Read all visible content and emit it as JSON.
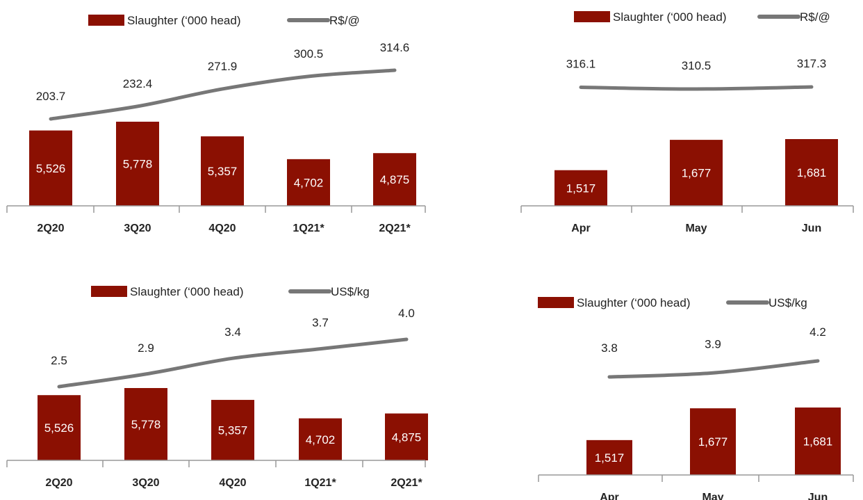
{
  "colors": {
    "bar": "#8B1002",
    "line": "#777777",
    "axis": "#999999"
  },
  "chart_data": [
    {
      "type": "bar",
      "categories": [
        "2Q20",
        "3Q20",
        "4Q20",
        "1Q21*",
        "2Q21*"
      ],
      "series": [
        {
          "name": "Slaughter (‘000 head)",
          "type": "bar",
          "values": [
            "5,526",
            "5,778",
            "5,357",
            "4,702",
            "4,875"
          ]
        },
        {
          "name": "R$/@",
          "type": "line",
          "values": [
            "203.7",
            "232.4",
            "271.9",
            "300.5",
            "314.6"
          ]
        }
      ],
      "legend": "top"
    },
    {
      "type": "bar",
      "categories": [
        "Apr",
        "May",
        "Jun"
      ],
      "series": [
        {
          "name": "Slaughter (‘000 head)",
          "type": "bar",
          "values": [
            "1,517",
            "1,677",
            "1,681"
          ]
        },
        {
          "name": "R$/@",
          "type": "line",
          "values": [
            "316.1",
            "310.5",
            "317.3"
          ]
        }
      ],
      "legend": "top"
    },
    {
      "type": "bar",
      "categories": [
        "2Q20",
        "3Q20",
        "4Q20",
        "1Q21*",
        "2Q21*"
      ],
      "series": [
        {
          "name": "Slaughter (‘000 head)",
          "type": "bar",
          "values": [
            "5,526",
            "5,778",
            "5,357",
            "4,702",
            "4,875"
          ]
        },
        {
          "name": "US$/kg",
          "type": "line",
          "values": [
            "2.5",
            "2.9",
            "3.4",
            "3.7",
            "4.0"
          ]
        }
      ],
      "legend": "top"
    },
    {
      "type": "bar",
      "categories": [
        "Apr",
        "May",
        "Jun"
      ],
      "series": [
        {
          "name": "Slaughter (‘000 head)",
          "type": "bar",
          "values": [
            "1,517",
            "1,677",
            "1,681"
          ]
        },
        {
          "name": "US$/kg",
          "type": "line",
          "values": [
            "3.8",
            "3.9",
            "4.2"
          ]
        }
      ],
      "legend": "top"
    }
  ]
}
